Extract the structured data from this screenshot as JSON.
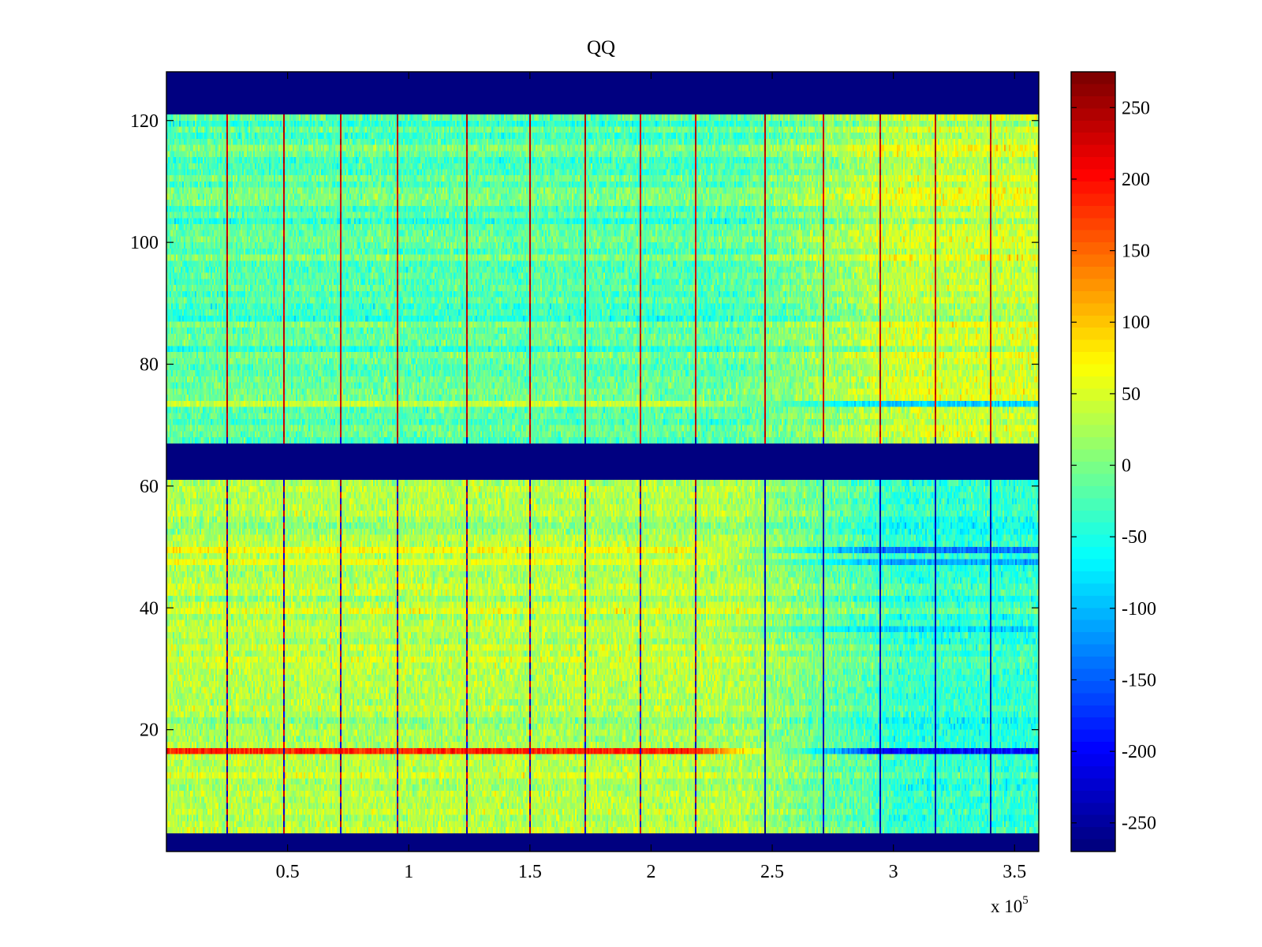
{
  "chart_data": {
    "type": "heatmap",
    "title": "QQ",
    "xlabel": "",
    "ylabel": "",
    "x_multiplier_label": "x 10",
    "x_multiplier_exponent": "5",
    "xlim": [
      0,
      360000
    ],
    "ylim": [
      0,
      128
    ],
    "x_ticks": [
      50000,
      100000,
      150000,
      200000,
      250000,
      300000,
      350000
    ],
    "x_tick_labels": [
      "0.5",
      "1",
      "1.5",
      "2",
      "2.5",
      "3",
      "3.5"
    ],
    "y_ticks": [
      20,
      40,
      60,
      80,
      100,
      120
    ],
    "y_tick_labels": [
      "20",
      "40",
      "60",
      "80",
      "100",
      "120"
    ],
    "colorbar": {
      "colormap": "jet",
      "range": [
        -270,
        275
      ],
      "ticks": [
        250,
        200,
        150,
        100,
        50,
        0,
        -50,
        -100,
        -150,
        -200,
        -250
      ],
      "tick_labels": [
        "250",
        "200",
        "150",
        "100",
        "50",
        "0",
        "-50",
        "-100",
        "-150",
        "-200",
        "-250"
      ]
    },
    "masked_row_bands": [
      [
        0,
        3
      ],
      [
        61,
        67
      ],
      [
        121,
        128
      ]
    ],
    "masked_value": -270,
    "vertical_spike_columns": [
      24500,
      48000,
      71500,
      95000,
      124000,
      149500,
      172500,
      195000,
      218000,
      247000,
      271000,
      294000,
      317000,
      340000
    ],
    "row_groups": [
      {
        "name": "lower",
        "rows": [
          3,
          61
        ],
        "mean_left": 30,
        "mean_right": -40
      },
      {
        "name": "upper",
        "rows": [
          67,
          121
        ],
        "mean_left": -20,
        "mean_right": 40
      }
    ],
    "highlight_rows": [
      {
        "row": 16,
        "left_value": 190,
        "right_value": -200
      },
      {
        "row": 49,
        "left_value": 70,
        "right_value": -140
      },
      {
        "row": 47,
        "left_value": 60,
        "right_value": -110
      },
      {
        "row": 36,
        "left_value": 40,
        "right_value": -90
      },
      {
        "row": 73,
        "left_value": 40,
        "right_value": -90
      }
    ]
  }
}
